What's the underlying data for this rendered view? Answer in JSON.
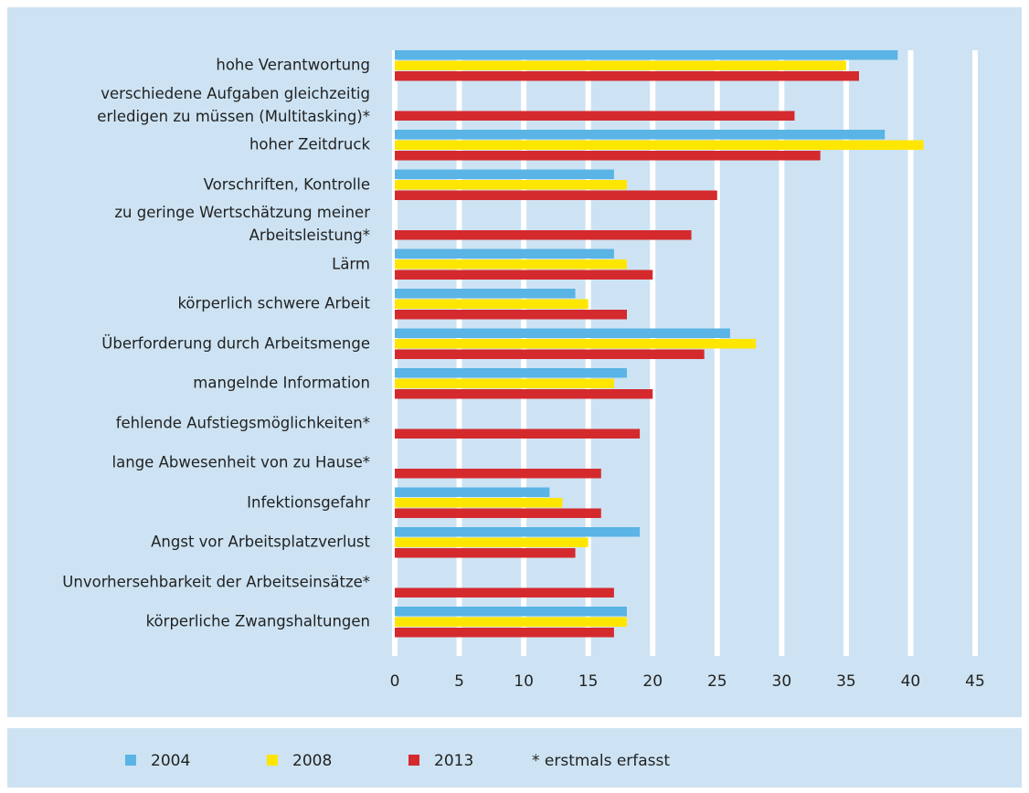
{
  "chart_data": {
    "type": "barh",
    "categories": [
      "hohe Verantwortung",
      "verschiedene Aufgaben gleichzeitig\nerledigen zu müssen (Multitasking)*",
      "hoher Zeitdruck",
      "Vorschriften, Kontrolle",
      "zu geringe Wertschätzung meiner\nArbeitsleistung*",
      "Lärm",
      "körperlich schwere Arbeit",
      "Überforderung durch Arbeitsmenge",
      "mangelnde Information",
      "fehlende Aufstiegsmöglichkeiten*",
      "lange Abwesenheit von zu Hause*",
      "Infektionsgefahr",
      "Angst vor Arbeitsplatzverlust",
      "Unvorhersehbarkeit der Arbeitseinsätze*",
      "körperliche Zwangshaltungen"
    ],
    "series": [
      {
        "name": "2004",
        "color": "#5ab4e5",
        "values": [
          39,
          null,
          38,
          17,
          null,
          17,
          14,
          26,
          18,
          null,
          null,
          12,
          19,
          null,
          18
        ]
      },
      {
        "name": "2008",
        "color": "#ffe600",
        "values": [
          35,
          null,
          41,
          18,
          null,
          18,
          15,
          28,
          17,
          null,
          null,
          13,
          15,
          null,
          18
        ]
      },
      {
        "name": "2013",
        "color": "#d42a2e",
        "values": [
          36,
          31,
          33,
          25,
          23,
          20,
          18,
          24,
          20,
          19,
          16,
          16,
          14,
          17,
          17
        ]
      }
    ],
    "note": "* erstmals erfasst",
    "xlim": [
      0,
      45
    ],
    "xticks": [
      0,
      5,
      10,
      15,
      20,
      25,
      30,
      35,
      40,
      45
    ],
    "grid": true
  }
}
